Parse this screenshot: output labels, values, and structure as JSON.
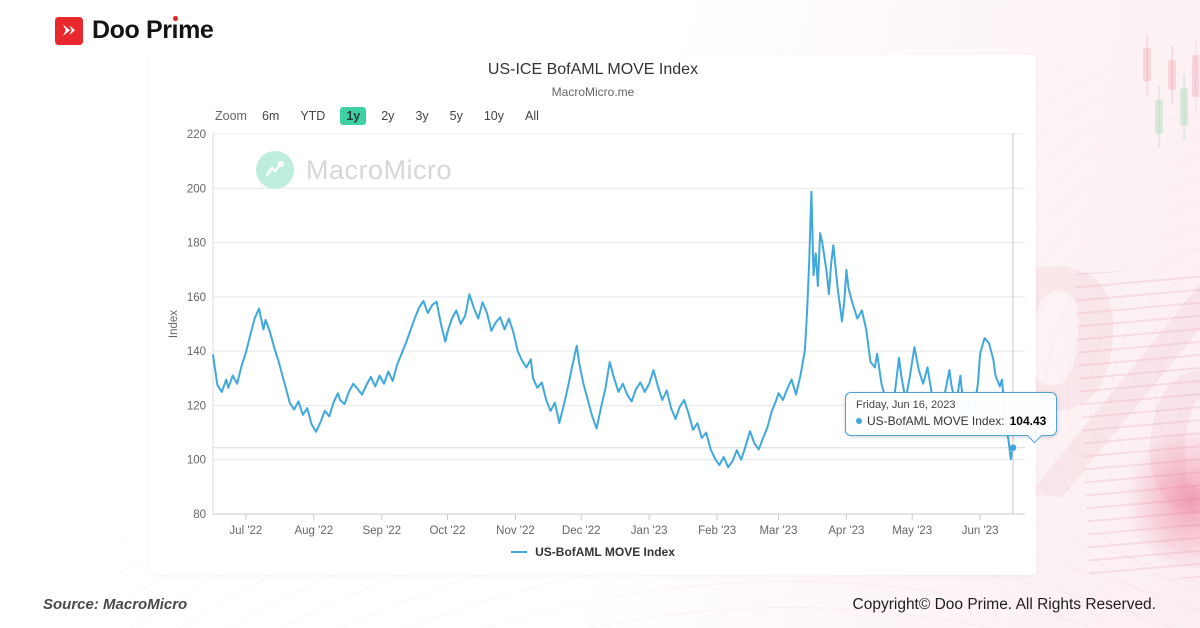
{
  "brand": {
    "logo_text": "Doo Prime",
    "logo_text_before": "Doo Pr",
    "logo_text_i": "ı",
    "logo_text_after": "me",
    "accent_red": "#e8282d"
  },
  "chart": {
    "title": "US-ICE BofAML MOVE Index",
    "subtitle": "MacroMicro.me",
    "watermark": "MacroMicro",
    "zoom_label": "Zoom",
    "ranges": [
      "6m",
      "YTD",
      "1y",
      "2y",
      "3y",
      "5y",
      "10y",
      "All"
    ],
    "active_range": "1y",
    "active_range_color": "#3ed1a4"
  },
  "tooltip": {
    "date": "Friday, Jun 16, 2023",
    "series_label": "US-BofAML MOVE Index:",
    "value": "104.43",
    "crosshair_day": 365,
    "crosshair_value": 104.43
  },
  "legend": {
    "label": "US-BofAML MOVE Index"
  },
  "footer": {
    "source": "Source: MacroMicro",
    "copyright": "Copyright© Doo Prime. All Rights Reserved."
  },
  "chart_data": {
    "type": "line",
    "title": "US-ICE BofAML MOVE Index",
    "subtitle": "MacroMicro.me",
    "xlabel": "",
    "ylabel": "Index",
    "ylim": [
      80,
      220
    ],
    "y_ticks": [
      80,
      100,
      120,
      140,
      160,
      180,
      200,
      220
    ],
    "x_range_days": [
      0,
      365
    ],
    "x_range_dates": "Jun 16, 2022 - Jun 16, 2023",
    "x_ticks": [
      {
        "day": 15,
        "label": "Jul '22"
      },
      {
        "day": 46,
        "label": "Aug '22"
      },
      {
        "day": 77,
        "label": "Sep '22"
      },
      {
        "day": 107,
        "label": "Oct '22"
      },
      {
        "day": 138,
        "label": "Nov '22"
      },
      {
        "day": 168,
        "label": "Dec '22"
      },
      {
        "day": 199,
        "label": "Jan '23"
      },
      {
        "day": 230,
        "label": "Feb '23"
      },
      {
        "day": 258,
        "label": "Mar '23"
      },
      {
        "day": 289,
        "label": "Apr '23"
      },
      {
        "day": 319,
        "label": "May '23"
      },
      {
        "day": 350,
        "label": "Jun '23"
      }
    ],
    "grid": "horizontal",
    "legend_position": "bottom-center",
    "series": [
      {
        "name": "US-BofAML MOVE Index",
        "color": "#3fa8dc",
        "last_point": {
          "date": "Friday, Jun 16, 2023",
          "value": 104.43
        },
        "points": [
          [
            0,
            138.5
          ],
          [
            1,
            133
          ],
          [
            2,
            127.5
          ],
          [
            4,
            125
          ],
          [
            6,
            129.5
          ],
          [
            7,
            126.5
          ],
          [
            9,
            131
          ],
          [
            11,
            128
          ],
          [
            13,
            134.5
          ],
          [
            15,
            139.5
          ],
          [
            17,
            146
          ],
          [
            19,
            152
          ],
          [
            21,
            155.7
          ],
          [
            23,
            148
          ],
          [
            24,
            151.5
          ],
          [
            26,
            147
          ],
          [
            28,
            141
          ],
          [
            30,
            136
          ],
          [
            32,
            130
          ],
          [
            33,
            127.2
          ],
          [
            35,
            121
          ],
          [
            37,
            118.5
          ],
          [
            39,
            121.5
          ],
          [
            41,
            116.5
          ],
          [
            43,
            119
          ],
          [
            45,
            113
          ],
          [
            47,
            110.3
          ],
          [
            49,
            113.8
          ],
          [
            51,
            118
          ],
          [
            53,
            116
          ],
          [
            55,
            121
          ],
          [
            57,
            124.5
          ],
          [
            58,
            122
          ],
          [
            60,
            120.5
          ],
          [
            62,
            125
          ],
          [
            64,
            128
          ],
          [
            66,
            126
          ],
          [
            68,
            124
          ],
          [
            70,
            127.5
          ],
          [
            72,
            130.5
          ],
          [
            74,
            127
          ],
          [
            76,
            131
          ],
          [
            78,
            128
          ],
          [
            80,
            132.5
          ],
          [
            82,
            129
          ],
          [
            84,
            135
          ],
          [
            86,
            139
          ],
          [
            88,
            143
          ],
          [
            90,
            147.5
          ],
          [
            92,
            152
          ],
          [
            94,
            156
          ],
          [
            96,
            158.5
          ],
          [
            98,
            154
          ],
          [
            100,
            157
          ],
          [
            102,
            158.2
          ],
          [
            104,
            150
          ],
          [
            106,
            143.5
          ],
          [
            107,
            147
          ],
          [
            109,
            152
          ],
          [
            111,
            155
          ],
          [
            113,
            150
          ],
          [
            115,
            153
          ],
          [
            117,
            160.9
          ],
          [
            119,
            156
          ],
          [
            121,
            152
          ],
          [
            123,
            158
          ],
          [
            125,
            154
          ],
          [
            127,
            147.5
          ],
          [
            129,
            150.5
          ],
          [
            131,
            152.5
          ],
          [
            133,
            148
          ],
          [
            135,
            152
          ],
          [
            137,
            147
          ],
          [
            139,
            140
          ],
          [
            141,
            136.5
          ],
          [
            143,
            134
          ],
          [
            145,
            137
          ],
          [
            146,
            130
          ],
          [
            148,
            126.5
          ],
          [
            150,
            128.5
          ],
          [
            152,
            122
          ],
          [
            154,
            118
          ],
          [
            156,
            121
          ],
          [
            158,
            113.5
          ],
          [
            160,
            120
          ],
          [
            162,
            127
          ],
          [
            164,
            135
          ],
          [
            166,
            142
          ],
          [
            167,
            136
          ],
          [
            169,
            128
          ],
          [
            171,
            122
          ],
          [
            173,
            116
          ],
          [
            175,
            111.5
          ],
          [
            177,
            119
          ],
          [
            179,
            126
          ],
          [
            181,
            136
          ],
          [
            183,
            130
          ],
          [
            185,
            125
          ],
          [
            187,
            128
          ],
          [
            189,
            124
          ],
          [
            191,
            121.5
          ],
          [
            193,
            126
          ],
          [
            195,
            128.5
          ],
          [
            197,
            125
          ],
          [
            199,
            128
          ],
          [
            201,
            133
          ],
          [
            203,
            127
          ],
          [
            205,
            122
          ],
          [
            207,
            125.5
          ],
          [
            209,
            119
          ],
          [
            211,
            115
          ],
          [
            213,
            119.5
          ],
          [
            215,
            122
          ],
          [
            217,
            117
          ],
          [
            219,
            111
          ],
          [
            221,
            113.5
          ],
          [
            223,
            108
          ],
          [
            225,
            110
          ],
          [
            227,
            104
          ],
          [
            229,
            100.5
          ],
          [
            231,
            98
          ],
          [
            233,
            101
          ],
          [
            235,
            97.2
          ],
          [
            237,
            99.5
          ],
          [
            239,
            103.5
          ],
          [
            241,
            100
          ],
          [
            243,
            105
          ],
          [
            245,
            110.5
          ],
          [
            247,
            106
          ],
          [
            249,
            103.8
          ],
          [
            251,
            108
          ],
          [
            253,
            112
          ],
          [
            255,
            118
          ],
          [
            257,
            122
          ],
          [
            258,
            124.5
          ],
          [
            260,
            122
          ],
          [
            262,
            126
          ],
          [
            264,
            129.5
          ],
          [
            266,
            124
          ],
          [
            268,
            131
          ],
          [
            270,
            140
          ],
          [
            271,
            154
          ],
          [
            272,
            173
          ],
          [
            273,
            198.7
          ],
          [
            274,
            168
          ],
          [
            275,
            176
          ],
          [
            276,
            164
          ],
          [
            277,
            183.5
          ],
          [
            278,
            180
          ],
          [
            280,
            169
          ],
          [
            281,
            161
          ],
          [
            282,
            172
          ],
          [
            283,
            179
          ],
          [
            285,
            163
          ],
          [
            287,
            151
          ],
          [
            288,
            158
          ],
          [
            289,
            170
          ],
          [
            290,
            163
          ],
          [
            292,
            157
          ],
          [
            294,
            152
          ],
          [
            296,
            155
          ],
          [
            298,
            148
          ],
          [
            300,
            136
          ],
          [
            302,
            134
          ],
          [
            303,
            139
          ],
          [
            305,
            128
          ],
          [
            307,
            122
          ],
          [
            309,
            117.5
          ],
          [
            311,
            124
          ],
          [
            313,
            137.5
          ],
          [
            314,
            131
          ],
          [
            316,
            122
          ],
          [
            318,
            131
          ],
          [
            320,
            141.5
          ],
          [
            322,
            133
          ],
          [
            324,
            128
          ],
          [
            326,
            134
          ],
          [
            328,
            124
          ],
          [
            330,
            120
          ],
          [
            332,
            112.5
          ],
          [
            334,
            125
          ],
          [
            336,
            133
          ],
          [
            337,
            127
          ],
          [
            339,
            120
          ],
          [
            341,
            131
          ],
          [
            343,
            114
          ],
          [
            345,
            121
          ],
          [
            347,
            117
          ],
          [
            349,
            128
          ],
          [
            350,
            139
          ],
          [
            352,
            144.8
          ],
          [
            354,
            143
          ],
          [
            356,
            137
          ],
          [
            357,
            131
          ],
          [
            359,
            127
          ],
          [
            360,
            129.5
          ],
          [
            361,
            119
          ],
          [
            362,
            111
          ],
          [
            363,
            107
          ],
          [
            364,
            100.2
          ],
          [
            365,
            104.43
          ]
        ]
      }
    ]
  }
}
